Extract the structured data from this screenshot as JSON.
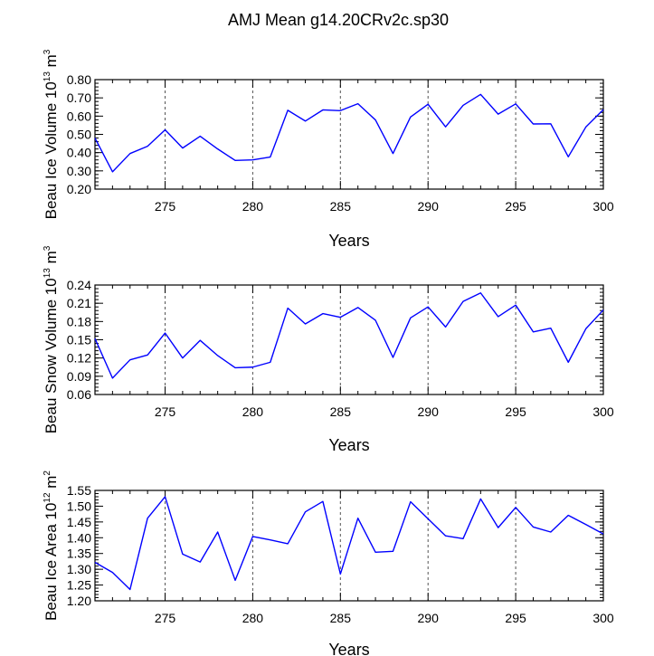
{
  "title": "AMJ Mean g14.20CRv2c.sp30",
  "line_color": "#0000ff",
  "chart_data": [
    {
      "type": "line",
      "ylabel": {
        "base": "Beau Ice Volume 10",
        "exp": "13",
        "unit": " m",
        "unit_exp": "3"
      },
      "xlabel": "Years",
      "xlim": [
        271,
        300
      ],
      "ylim": [
        0.2,
        0.8
      ],
      "yticks": [
        0.2,
        0.3,
        0.4,
        0.5,
        0.6,
        0.7,
        0.8
      ],
      "ytick_labels": [
        "0.20",
        "0.30",
        "0.40",
        "0.50",
        "0.60",
        "0.70",
        "0.80"
      ],
      "yminor": 0.02,
      "xticks": [
        275,
        280,
        285,
        290,
        295,
        300
      ],
      "xtick_labels": [
        "275",
        "280",
        "285",
        "290",
        "295",
        "300"
      ],
      "gridlines_x": [
        275,
        280,
        285,
        290,
        295
      ],
      "x": [
        271,
        272,
        273,
        274,
        275,
        276,
        277,
        278,
        279,
        280,
        281,
        282,
        283,
        284,
        285,
        286,
        287,
        288,
        289,
        290,
        291,
        292,
        293,
        294,
        295,
        296,
        297,
        298,
        299,
        300
      ],
      "values": [
        0.48,
        0.295,
        0.395,
        0.435,
        0.525,
        0.425,
        0.49,
        0.42,
        0.357,
        0.36,
        0.376,
        0.632,
        0.573,
        0.634,
        0.63,
        0.668,
        0.579,
        0.395,
        0.595,
        0.665,
        0.541,
        0.659,
        0.719,
        0.611,
        0.667,
        0.557,
        0.558,
        0.377,
        0.54,
        0.636
      ]
    },
    {
      "type": "line",
      "ylabel": {
        "base": "Beau Snow Volume 10",
        "exp": "13",
        "unit": " m",
        "unit_exp": "3"
      },
      "xlabel": "Years",
      "xlim": [
        271,
        300
      ],
      "ylim": [
        0.06,
        0.24
      ],
      "yticks": [
        0.06,
        0.09,
        0.12,
        0.15,
        0.18,
        0.21,
        0.24
      ],
      "ytick_labels": [
        "0.06",
        "0.09",
        "0.12",
        "0.15",
        "0.18",
        "0.21",
        "0.24"
      ],
      "yminor": 0.006,
      "xticks": [
        275,
        280,
        285,
        290,
        295,
        300
      ],
      "xtick_labels": [
        "275",
        "280",
        "285",
        "290",
        "295",
        "300"
      ],
      "gridlines_x": [
        275,
        280,
        285,
        290,
        295
      ],
      "x": [
        271,
        272,
        273,
        274,
        275,
        276,
        277,
        278,
        279,
        280,
        281,
        282,
        283,
        284,
        285,
        286,
        287,
        288,
        289,
        290,
        291,
        292,
        293,
        294,
        295,
        296,
        297,
        298,
        299,
        300
      ],
      "values": [
        0.152,
        0.087,
        0.117,
        0.125,
        0.161,
        0.12,
        0.149,
        0.124,
        0.104,
        0.105,
        0.113,
        0.202,
        0.176,
        0.193,
        0.187,
        0.203,
        0.182,
        0.121,
        0.186,
        0.204,
        0.171,
        0.213,
        0.227,
        0.188,
        0.207,
        0.163,
        0.169,
        0.113,
        0.168,
        0.199
      ]
    },
    {
      "type": "line",
      "ylabel": {
        "base": "Beau Ice Area 10",
        "exp": "12",
        "unit": " m",
        "unit_exp": "2"
      },
      "xlabel": "Years",
      "xlim": [
        271,
        300
      ],
      "ylim": [
        1.2,
        1.55
      ],
      "yticks": [
        1.2,
        1.25,
        1.3,
        1.35,
        1.4,
        1.45,
        1.5,
        1.55
      ],
      "ytick_labels": [
        "1.20",
        "1.25",
        "1.30",
        "1.35",
        "1.40",
        "1.45",
        "1.50",
        "1.55"
      ],
      "yminor": 0.01,
      "xticks": [
        275,
        280,
        285,
        290,
        295,
        300
      ],
      "xtick_labels": [
        "275",
        "280",
        "285",
        "290",
        "295",
        "300"
      ],
      "gridlines_x": [
        275,
        280,
        285,
        290,
        295
      ],
      "x": [
        271,
        272,
        273,
        274,
        275,
        276,
        277,
        278,
        279,
        280,
        281,
        282,
        283,
        284,
        285,
        286,
        287,
        288,
        289,
        290,
        291,
        292,
        293,
        294,
        295,
        296,
        297,
        298,
        299,
        300
      ],
      "values": [
        1.322,
        1.29,
        1.236,
        1.462,
        1.53,
        1.348,
        1.323,
        1.418,
        1.265,
        1.404,
        1.393,
        1.381,
        1.482,
        1.515,
        1.285,
        1.462,
        1.354,
        1.357,
        1.514,
        1.46,
        1.406,
        1.397,
        1.523,
        1.432,
        1.496,
        1.434,
        1.418,
        1.471,
        1.442,
        1.412
      ]
    }
  ]
}
